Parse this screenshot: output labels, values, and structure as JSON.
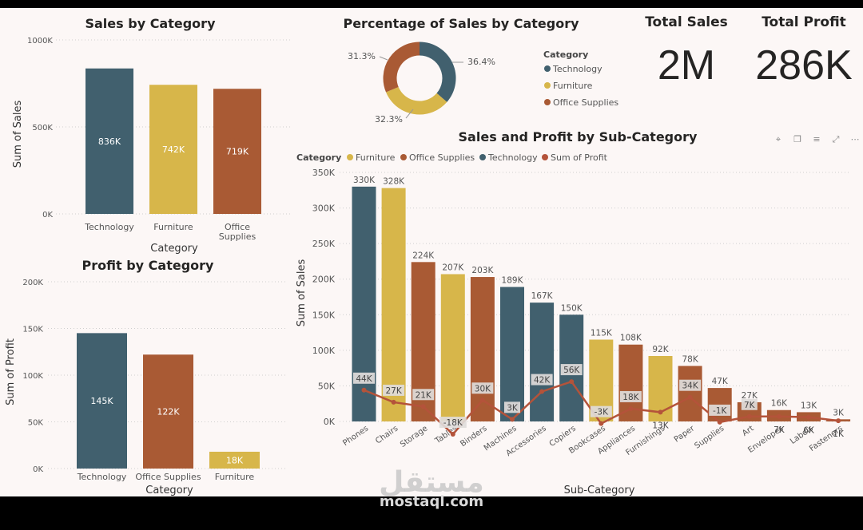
{
  "watermark": {
    "arabic": "مستقل",
    "latin": "mostaql.com"
  },
  "kpis": {
    "total_sales": {
      "title": "Total Sales",
      "value": "2M"
    },
    "total_profit": {
      "title": "Total Profit",
      "value": "286K"
    }
  },
  "colors": {
    "technology": "#41606e",
    "furniture": "#d7b64a",
    "office_supplies": "#a95a34",
    "profit_line": "#b4533a",
    "label_box": "#dfdcda"
  },
  "toolbar": {
    "icons": [
      "pin-icon",
      "copy-icon",
      "filter-icon",
      "focus-icon",
      "more-icon"
    ]
  },
  "chart_data": [
    {
      "id": "sales_by_category",
      "type": "bar",
      "title": "Sales by Category",
      "xlabel": "Category",
      "ylabel": "Sum of Sales",
      "ylim": [
        0,
        1000000
      ],
      "ticks": [
        "0K",
        "500K",
        "1000K"
      ],
      "tick_values": [
        0,
        500000,
        1000000
      ],
      "categories": [
        "Technology",
        "Furniture",
        "Office Supplies"
      ],
      "category_labels": [
        [
          "Technology"
        ],
        [
          "Furniture"
        ],
        [
          "Office",
          "Supplies"
        ]
      ],
      "values": [
        836000,
        742000,
        719000
      ],
      "labels": [
        "836K",
        "742K",
        "719K"
      ],
      "colors": [
        "#41606e",
        "#d7b64a",
        "#a95a34"
      ]
    },
    {
      "id": "profit_by_category",
      "type": "bar",
      "title": "Profit by Category",
      "xlabel": "Category",
      "ylabel": "Sum of Profit",
      "ylim": [
        0,
        200000
      ],
      "ticks": [
        "0K",
        "50K",
        "100K",
        "150K",
        "200K"
      ],
      "tick_values": [
        0,
        50000,
        100000,
        150000,
        200000
      ],
      "categories": [
        "Technology",
        "Office Supplies",
        "Furniture"
      ],
      "values": [
        145000,
        122000,
        18000
      ],
      "labels": [
        "145K",
        "122K",
        "18K"
      ],
      "colors": [
        "#41606e",
        "#a95a34",
        "#d7b64a"
      ]
    },
    {
      "id": "percentage_by_category",
      "type": "pie",
      "title": "Percentage of Sales by Category",
      "legend_title": "Category",
      "legend": [
        "Technology",
        "Furniture",
        "Office Supplies"
      ],
      "slices": [
        {
          "name": "Technology",
          "value": 36.4,
          "label": "36.4%",
          "color": "#41606e"
        },
        {
          "name": "Furniture",
          "value": 32.3,
          "label": "32.3%",
          "color": "#d7b64a"
        },
        {
          "name": "Office Supplies",
          "value": 31.3,
          "label": "31.3%",
          "color": "#a95a34"
        }
      ]
    },
    {
      "id": "sales_profit_by_subcategory",
      "type": "bar",
      "title": "Sales and Profit by Sub-Category",
      "xlabel": "Sub-Category",
      "ylabel": "Sum of Sales",
      "legend_title": "Category",
      "legend": [
        {
          "name": "Furniture",
          "color": "#d7b64a"
        },
        {
          "name": "Office Supplies",
          "color": "#a95a34"
        },
        {
          "name": "Technology",
          "color": "#41606e"
        },
        {
          "name": "Sum of Profit",
          "color": "#b4533a"
        }
      ],
      "ylim": [
        0,
        350000
      ],
      "ticks": [
        "0K",
        "50K",
        "100K",
        "150K",
        "200K",
        "250K",
        "300K",
        "350K"
      ],
      "tick_values": [
        0,
        50000,
        100000,
        150000,
        200000,
        250000,
        300000,
        350000
      ],
      "categories": [
        "Phones",
        "Chairs",
        "Storage",
        "Tables",
        "Binders",
        "Machines",
        "Accessories",
        "Copiers",
        "Bookcases",
        "Appliances",
        "Furnishings",
        "Paper",
        "Supplies",
        "Art",
        "Envelopes",
        "Labels",
        "Fasteners"
      ],
      "category_group": [
        "Technology",
        "Furniture",
        "Office Supplies",
        "Furniture",
        "Office Supplies",
        "Technology",
        "Technology",
        "Technology",
        "Furniture",
        "Office Supplies",
        "Furniture",
        "Office Supplies",
        "Office Supplies",
        "Office Supplies",
        "Office Supplies",
        "Office Supplies",
        "Office Supplies"
      ],
      "sales": [
        330000,
        328000,
        224000,
        207000,
        203000,
        189000,
        167000,
        150000,
        115000,
        108000,
        92000,
        78000,
        47000,
        27000,
        16000,
        13000,
        3000
      ],
      "sales_labels": [
        "330K",
        "328K",
        "224K",
        "207K",
        "203K",
        "189K",
        "167K",
        "150K",
        "115K",
        "108K",
        "92K",
        "78K",
        "47K",
        "27K",
        "16K",
        "13K",
        "3K"
      ],
      "profit": [
        44000,
        27000,
        21000,
        -18000,
        30000,
        3000,
        42000,
        56000,
        -3000,
        18000,
        13000,
        34000,
        -1000,
        7000,
        7000,
        6000,
        1000
      ],
      "profit_labels": [
        "44K",
        "27K",
        "21K",
        "-18K",
        "30K",
        "3K",
        "42K",
        "56K",
        "-3K",
        "18K",
        "13K",
        "34K",
        "-1K",
        "7K",
        "7K",
        "6K",
        "1K"
      ],
      "profit_label_below": [
        false,
        false,
        false,
        false,
        false,
        false,
        false,
        false,
        false,
        false,
        true,
        false,
        false,
        false,
        true,
        true,
        true
      ]
    }
  ]
}
